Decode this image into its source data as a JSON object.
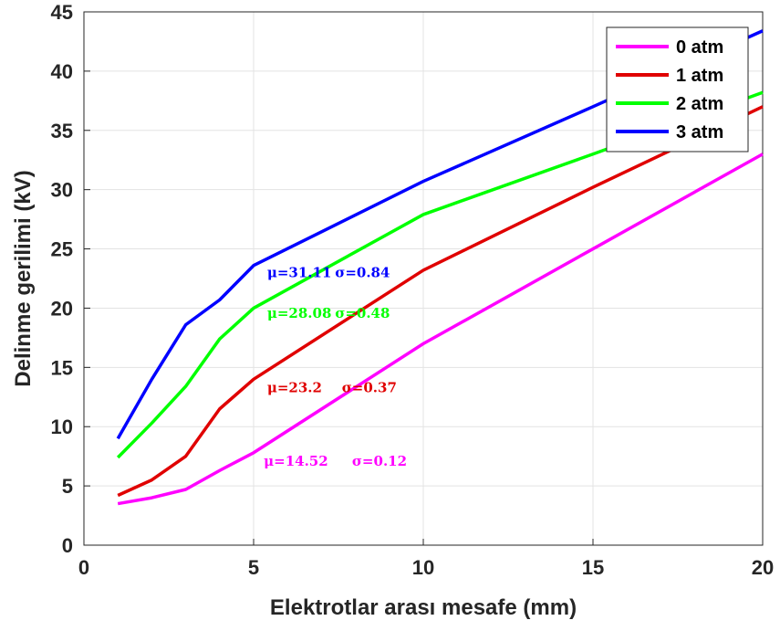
{
  "chart_data": {
    "type": "line",
    "xlabel": "Elektrotlar arası mesafe (mm)",
    "ylabel": "Delinme gerilimi (kV)",
    "xlim": [
      0,
      20
    ],
    "ylim": [
      0,
      45
    ],
    "xticks": [
      0,
      5,
      10,
      15,
      20
    ],
    "yticks": [
      0,
      5,
      10,
      15,
      20,
      25,
      30,
      35,
      40,
      45
    ],
    "grid": true,
    "legend_position": "top-right",
    "series": [
      {
        "name": "0 atm",
        "color": "#ff00ff",
        "x": [
          1,
          2,
          3,
          4,
          5,
          10,
          15,
          20
        ],
        "y": [
          3.5,
          4.0,
          4.7,
          6.3,
          7.8,
          17.0,
          25.0,
          33.0
        ]
      },
      {
        "name": "1 atm",
        "color": "#e00000",
        "x": [
          1,
          2,
          3,
          4,
          5,
          10,
          15,
          20
        ],
        "y": [
          4.2,
          5.5,
          7.5,
          11.5,
          14.0,
          23.2,
          30.2,
          37.0
        ]
      },
      {
        "name": "2 atm",
        "color": "#00ff00",
        "x": [
          1,
          2,
          3,
          4,
          5,
          10,
          15,
          20
        ],
        "y": [
          7.4,
          10.3,
          13.4,
          17.4,
          20.0,
          27.9,
          33.0,
          38.2
        ]
      },
      {
        "name": "3 atm",
        "color": "#0000ff",
        "x": [
          1,
          2,
          3,
          4,
          5,
          10,
          15,
          20
        ],
        "y": [
          9.0,
          14.0,
          18.6,
          20.7,
          23.6,
          30.7,
          37.0,
          43.4
        ]
      }
    ],
    "annotations": [
      {
        "series": "3 atm",
        "mu": "μ=31.11",
        "sigma": "σ=0.84",
        "color": "#0000ff",
        "mu_at": [
          5.4,
          22.6
        ],
        "sigma_at": [
          7.4,
          22.6
        ]
      },
      {
        "series": "2 atm",
        "mu": "μ=28.08",
        "sigma": "σ=0.48",
        "color": "#00ff00",
        "mu_at": [
          5.4,
          19.2
        ],
        "sigma_at": [
          7.4,
          19.2
        ]
      },
      {
        "series": "1 atm",
        "mu": "μ=23.2",
        "sigma": "σ=0.37",
        "color": "#e00000",
        "mu_at": [
          5.4,
          12.9
        ],
        "sigma_at": [
          7.6,
          12.9
        ]
      },
      {
        "series": "0 atm",
        "mu": "μ=14.52",
        "sigma": "σ=0.12",
        "color": "#ff00ff",
        "mu_at": [
          5.3,
          6.7
        ],
        "sigma_at": [
          7.9,
          6.7
        ]
      }
    ]
  }
}
